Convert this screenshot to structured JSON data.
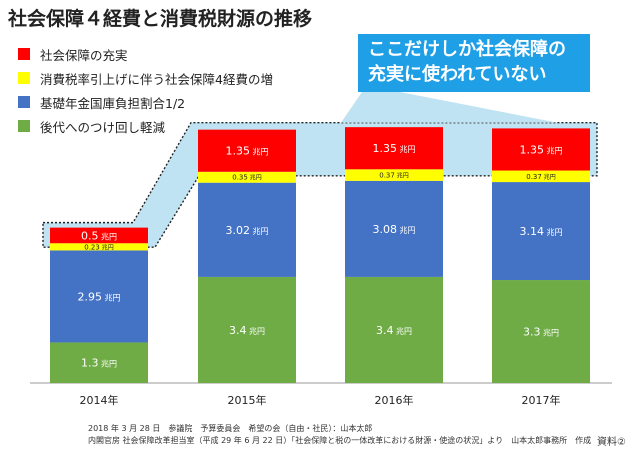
{
  "title": "社会保障４経費と消費税財源の推移",
  "callout": {
    "line1": "ここだけしか社会保障の",
    "line2": "充実に使われていない"
  },
  "unit": "兆円",
  "chart_data": {
    "type": "bar",
    "stacked": true,
    "categories": [
      "2014年",
      "2015年",
      "2016年",
      "2017年"
    ],
    "series": [
      {
        "name": "後代へのつけ回し軽減",
        "color": "#6fac46",
        "values": [
          1.3,
          3.4,
          3.4,
          3.3
        ]
      },
      {
        "name": "基礎年金国庫負担割合1/2",
        "color": "#4472c4",
        "values": [
          2.95,
          3.02,
          3.08,
          3.14
        ]
      },
      {
        "name": "消費税率引上げに伴う社会保障4経費の増",
        "color": "#ffff00",
        "values": [
          0.23,
          0.35,
          0.37,
          0.37
        ]
      },
      {
        "name": "社会保障の充実",
        "color": "#ff0000",
        "values": [
          0.5,
          1.35,
          1.35,
          1.35
        ]
      }
    ],
    "data_labels": [
      [
        "1.3",
        "3.4",
        "3.4",
        "3.3"
      ],
      [
        "2.95",
        "3.02",
        "3.08",
        "3.14"
      ],
      [
        "0.23",
        "0.35",
        "0.37",
        "0.37"
      ],
      [
        "0.5",
        "1.35",
        "1.35",
        "1.35"
      ]
    ],
    "legend": [
      {
        "label": "社会保障の充実",
        "color": "#ff0000"
      },
      {
        "label": "消費税率引上げに伴う社会保障4経費の増",
        "color": "#ffff00"
      },
      {
        "label": "基礎年金国庫負担割合1/2",
        "color": "#4472c4"
      },
      {
        "label": "後代へのつけ回し軽減",
        "color": "#6fac46"
      }
    ],
    "highlight_series": "社会保障の充実",
    "highlight_color": "#bfe3f2",
    "xlabel": "",
    "ylabel": "",
    "ylim": [
      0,
      8.5
    ]
  },
  "source": {
    "line1": "2018 年 3 月 28 日　参議院　予算委員会　希望の会（自由・社民）：山本太郎",
    "line2": "内閣官房 社会保障改革担当室（平成 29 年 6 月 22 日）「社会保障と税の一体改革における財源・使途の状況」より　山本太郎事務所　作成"
  },
  "doc_ref": "資料②"
}
